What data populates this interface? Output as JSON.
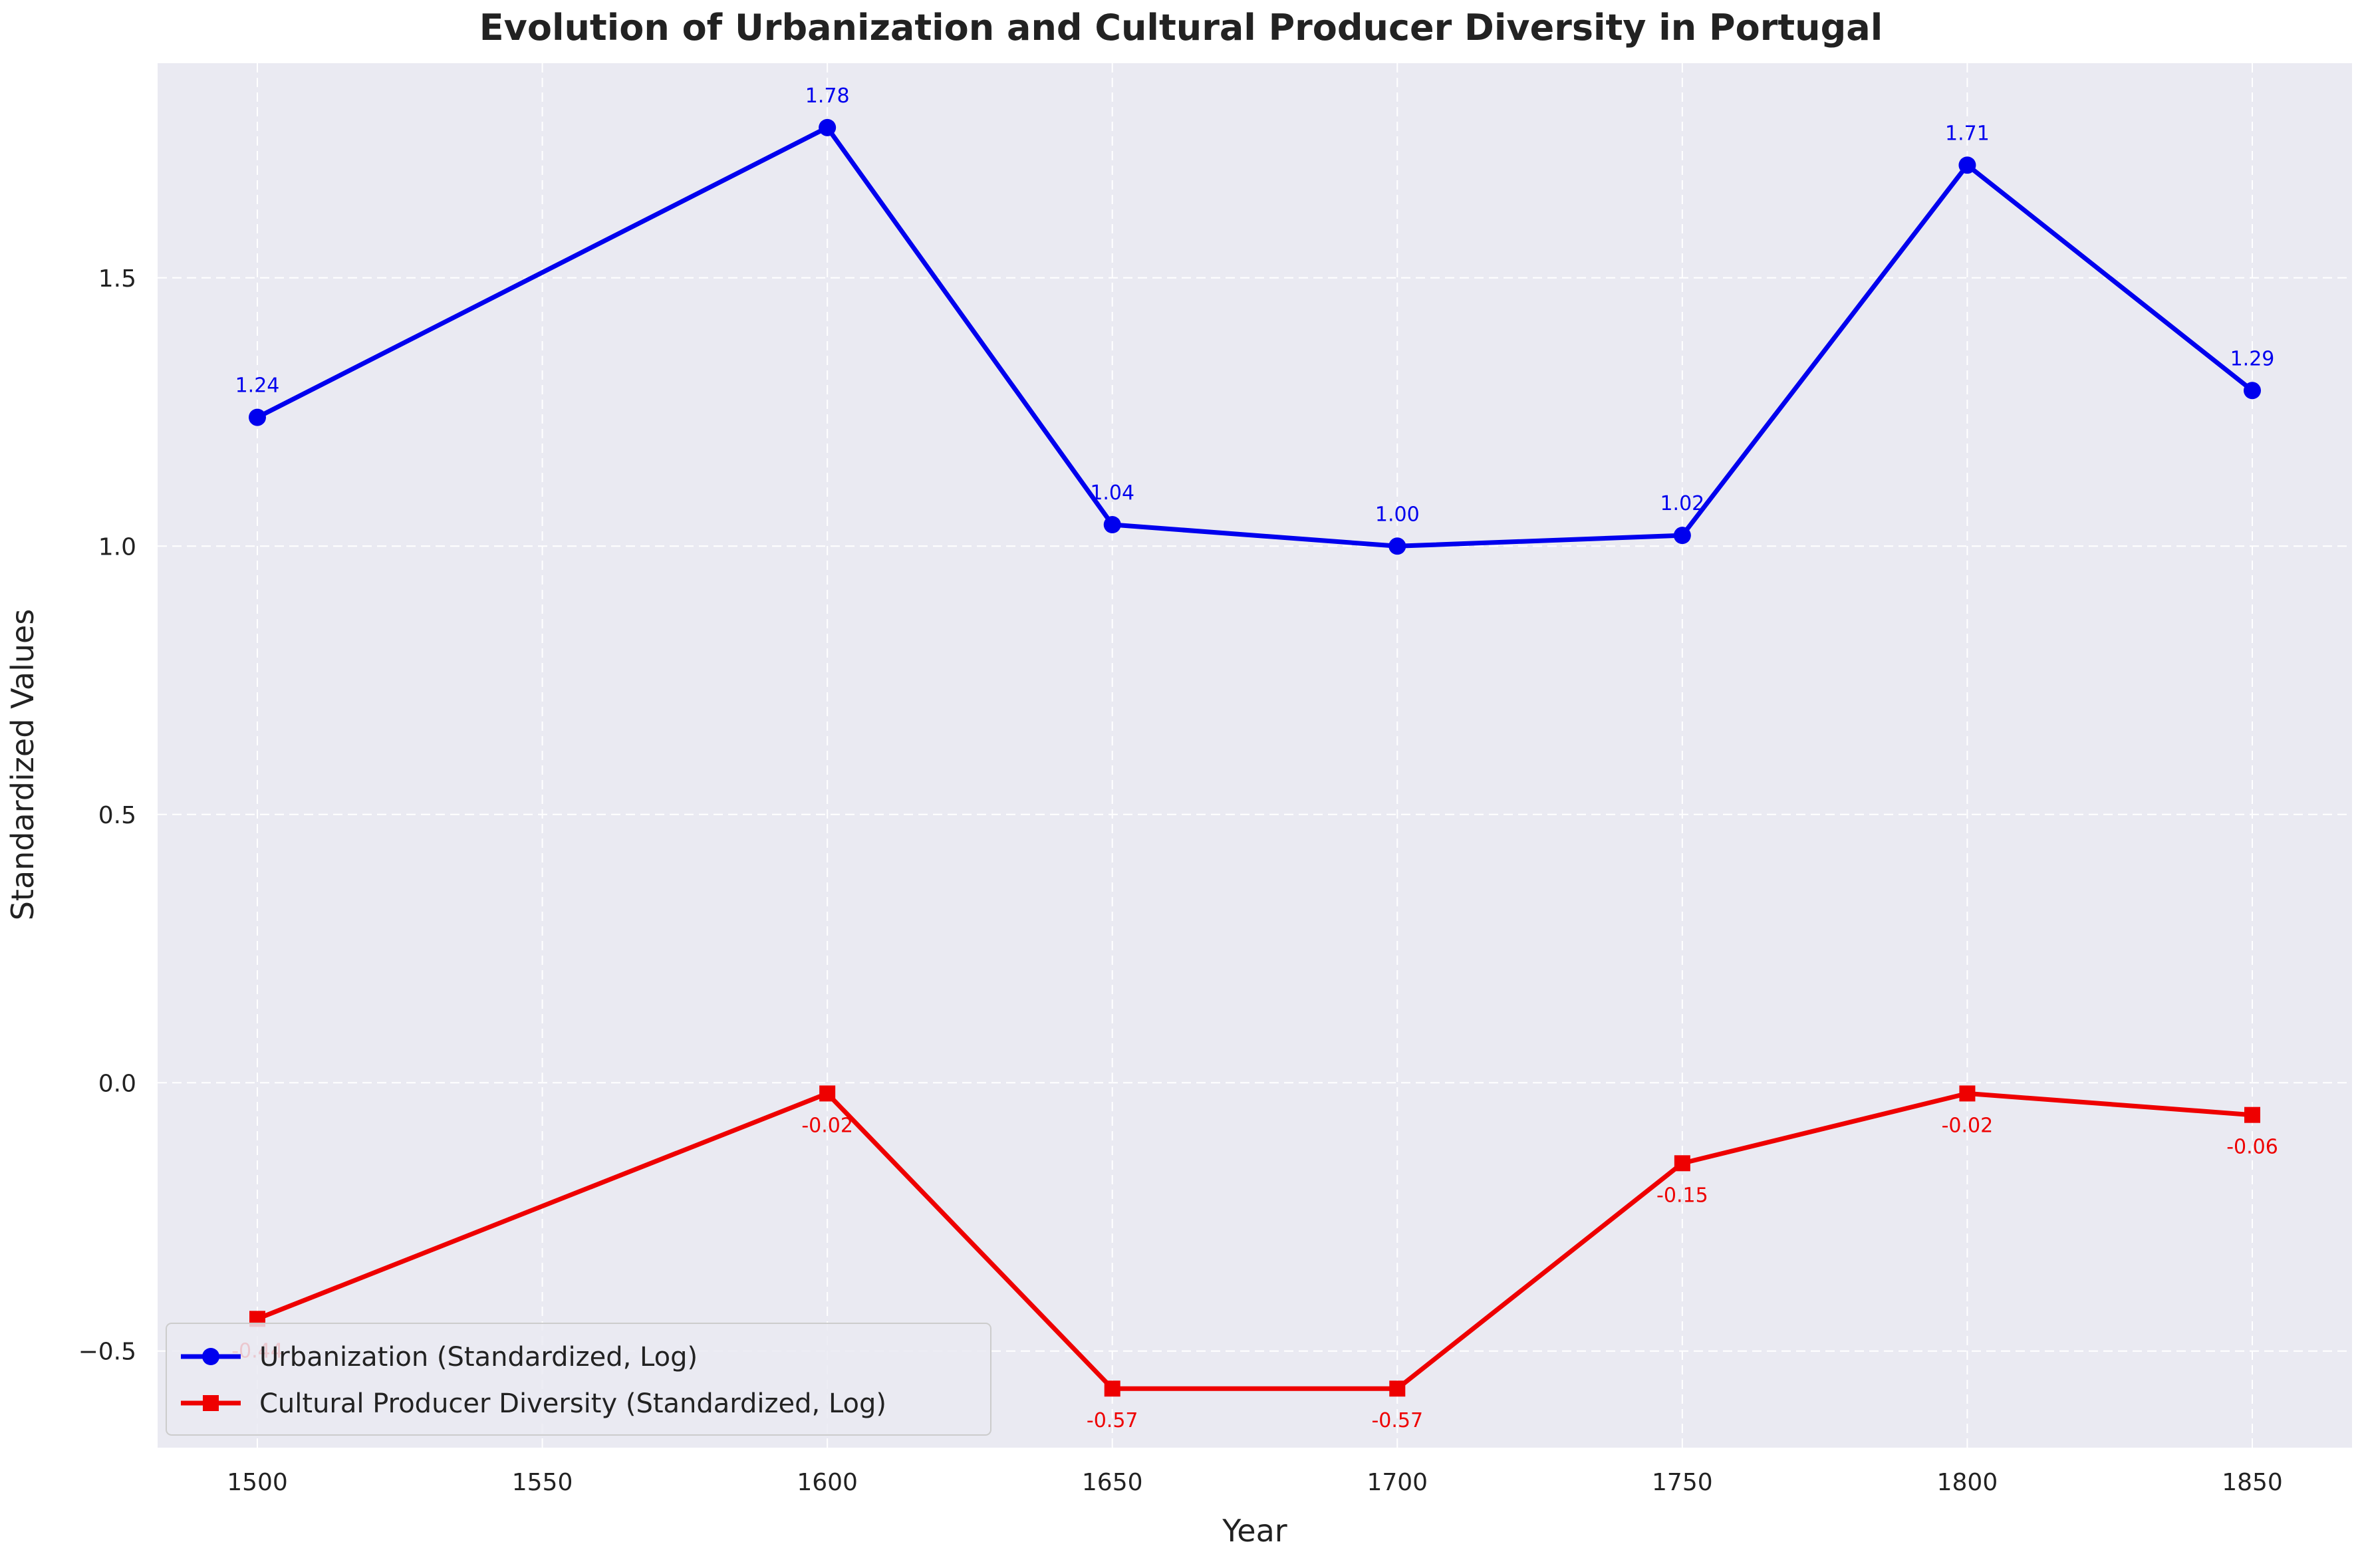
{
  "chart_data": {
    "type": "line",
    "title": "Evolution of Urbanization and Cultural Producer Diversity in Portugal",
    "xlabel": "Year",
    "ylabel": "Standardized Values",
    "x": [
      1500,
      1600,
      1650,
      1700,
      1750,
      1800,
      1850
    ],
    "xlim": [
      1482.5,
      1867.5
    ],
    "ylim": [
      -0.68,
      1.9
    ],
    "xticks": [
      1500,
      1550,
      1600,
      1650,
      1700,
      1750,
      1800,
      1850
    ],
    "yticks": [
      -0.5,
      0.0,
      0.5,
      1.0,
      1.5
    ],
    "ytick_labels": [
      "−0.5",
      "0.0",
      "0.5",
      "1.0",
      "1.5"
    ],
    "grid": true,
    "legend_position": "lower-left",
    "series": [
      {
        "name": "Urbanization (Standardized, Log)",
        "color": "#0000ee",
        "marker": "circle",
        "values": [
          1.24,
          1.78,
          1.04,
          1.0,
          1.02,
          1.71,
          1.29
        ],
        "labels": [
          "1.24",
          "1.78",
          "1.04",
          "1.00",
          "1.02",
          "1.71",
          "1.29"
        ],
        "label_position": "above"
      },
      {
        "name": "Cultural Producer Diversity (Standardized, Log)",
        "color": "#ee0000",
        "marker": "square",
        "values": [
          -0.44,
          -0.02,
          -0.57,
          -0.57,
          -0.15,
          -0.02,
          -0.06
        ],
        "labels": [
          "-0.44",
          "-0.02",
          "-0.57",
          "-0.57",
          "-0.15",
          "-0.02",
          "-0.06"
        ],
        "label_position": "below"
      }
    ],
    "colors": {
      "plot_background": "#eaeaf2",
      "grid": "#ffffff",
      "axis_text": "#222222"
    }
  }
}
